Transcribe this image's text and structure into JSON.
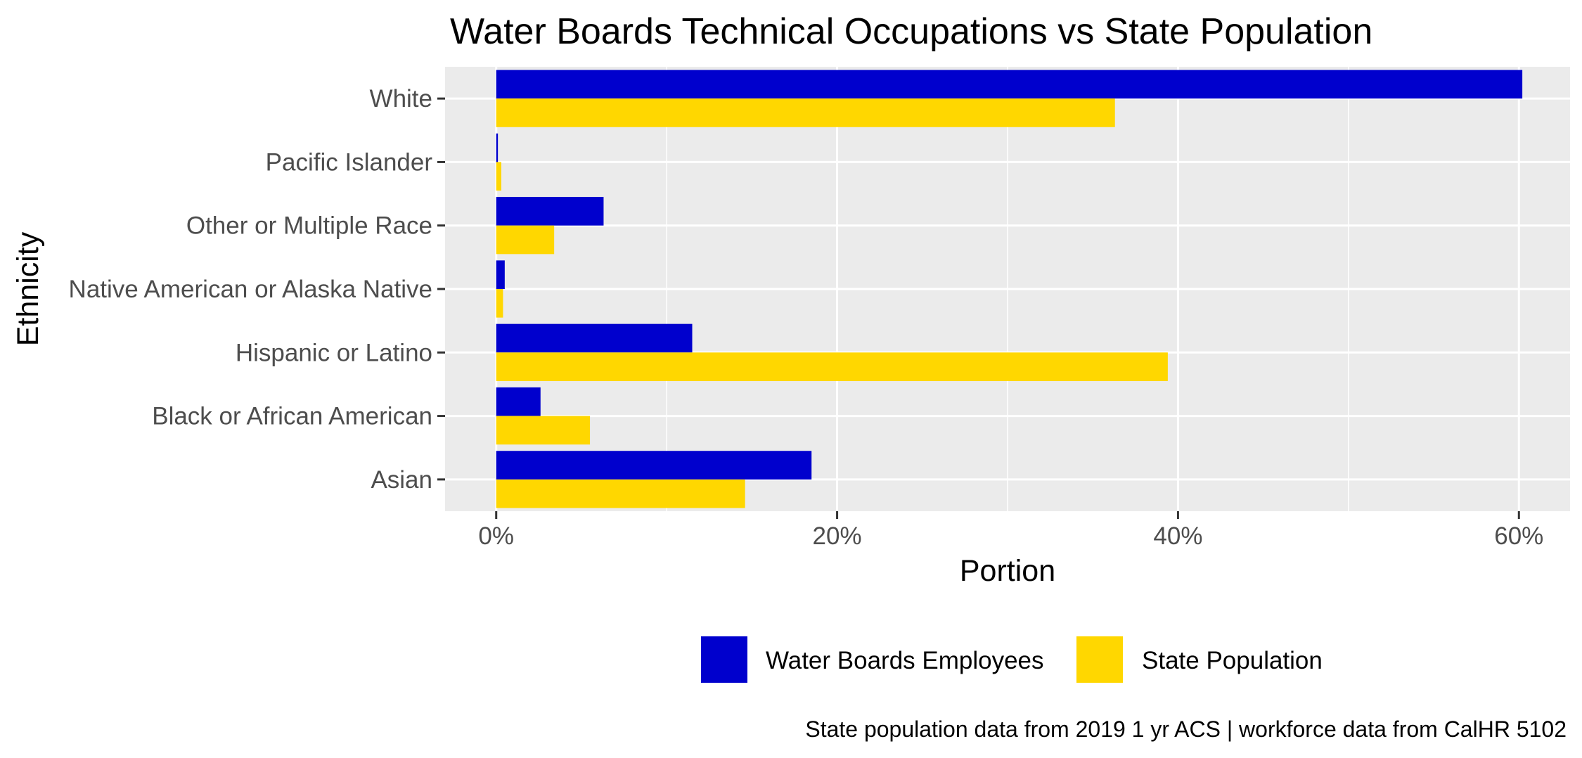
{
  "chart_data": {
    "type": "bar",
    "orientation": "horizontal",
    "title": "Water Boards Technical Occupations vs State Population",
    "xlabel": "Portion",
    "ylabel": "Ethnicity",
    "categories": [
      "Asian",
      "Black or African American",
      "Hispanic or Latino",
      "Native American or Alaska Native",
      "Other or Multiple Race",
      "Pacific Islander",
      "White"
    ],
    "series": [
      {
        "name": "Water Boards Employees",
        "color": "#0000CD",
        "values": [
          18.5,
          2.6,
          11.5,
          0.5,
          6.3,
          0.1,
          60.2
        ]
      },
      {
        "name": "State Population",
        "color": "#FFD700",
        "values": [
          14.6,
          5.5,
          39.4,
          0.4,
          3.4,
          0.3,
          36.3
        ]
      }
    ],
    "xlim": [
      -3,
      63
    ],
    "xticks": [
      0,
      20,
      40,
      60
    ],
    "xtick_labels": [
      "0%",
      "20%",
      "40%",
      "60%"
    ],
    "grid": true,
    "legend_position": "bottom",
    "caption": "State population data from 2019 1 yr ACS  |  workforce data from CalHR 5102",
    "panel_background": "#EBEBEB",
    "grid_color": "#FFFFFF"
  }
}
